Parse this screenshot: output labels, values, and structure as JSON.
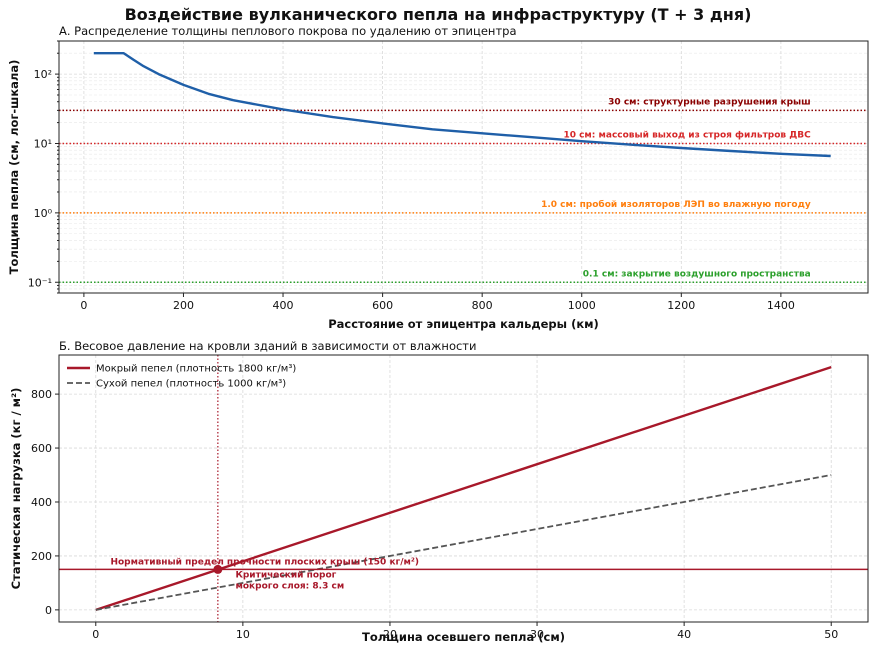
{
  "title": "Воздействие вулканического пепла на инфраструктуру (T + 3 дня)",
  "chart_data": [
    {
      "type": "line",
      "subtitle": "А. Распределение толщины пеплового покрова по удалению от эпицентра",
      "xlabel": "Расстояние от эпицентра кальдеры (км)",
      "ylabel": "Толщина пепла (см, лог-шкала)",
      "xlim": [
        -50,
        1575
      ],
      "ylim": [
        0.07,
        300
      ],
      "yscale": "log",
      "grid": true,
      "x_ticks": [
        0,
        200,
        400,
        600,
        800,
        1000,
        1200,
        1400
      ],
      "x_tick_labels": [
        "0",
        "200",
        "400",
        "600",
        "800",
        "1000",
        "1200",
        "1400"
      ],
      "y_ticks": [
        0.1,
        1,
        10,
        100
      ],
      "y_tick_labels": [
        "10⁻¹",
        "10⁰",
        "10¹",
        "10²"
      ],
      "series": [
        {
          "color": "#1f5fa8",
          "x": [
            20,
            50,
            80,
            100,
            120,
            150,
            200,
            250,
            300,
            400,
            500,
            600,
            700,
            800,
            900,
            1000,
            1100,
            1200,
            1300,
            1400,
            1500
          ],
          "y": [
            200,
            200,
            200,
            160,
            130,
            100,
            70,
            52,
            42,
            31,
            24,
            19.5,
            16,
            14,
            12.3,
            10.8,
            9.6,
            8.6,
            7.8,
            7.1,
            6.6
          ]
        }
      ],
      "thresholds": [
        {
          "value": 30,
          "color": "#8b0000",
          "label": "30 см: структурные разрушения крыш"
        },
        {
          "value": 10,
          "color": "#d62728",
          "label": "10 см: массовый выход из строя фильтров ДВС"
        },
        {
          "value": 1.0,
          "color": "#ff7f0e",
          "label": "1.0 см: пробой изоляторов ЛЭП во влажную погоду"
        },
        {
          "value": 0.1,
          "color": "#2ca02c",
          "label": "0.1 см: закрытие воздушного пространства"
        }
      ]
    },
    {
      "type": "line",
      "subtitle": "Б. Весовое давление на кровли зданий в зависимости от влажности",
      "xlabel": "Толщина осевшего пепла (см)",
      "ylabel": "Статическая нагрузка (кг / м²)",
      "xlim": [
        -2.5,
        52.5
      ],
      "ylim": [
        -45,
        945
      ],
      "grid": true,
      "legend_position": "top-left",
      "x_ticks": [
        0,
        10,
        20,
        30,
        40,
        50
      ],
      "x_tick_labels": [
        "0",
        "10",
        "20",
        "30",
        "40",
        "50"
      ],
      "y_ticks": [
        0,
        200,
        400,
        600,
        800
      ],
      "y_tick_labels": [
        "0",
        "200",
        "400",
        "600",
        "800"
      ],
      "series": [
        {
          "name": "Мокрый пепел (плотность 1800 кг/м³)",
          "color": "#a8182a",
          "style": "solid",
          "x": [
            0,
            50
          ],
          "y": [
            0,
            900
          ]
        },
        {
          "name": "Сухой пепел (плотность 1000 кг/м³)",
          "color": "#555555",
          "style": "dashed",
          "x": [
            0,
            50
          ],
          "y": [
            0,
            500
          ]
        }
      ],
      "threshold": {
        "value": 150,
        "color": "#a8182a",
        "label": "Нормативный предел прочности плоских крыш (150 кг/м²)"
      },
      "critical_point": {
        "x": 8.3,
        "y": 150,
        "label_line1": "Критический порог",
        "label_line2": "мокрого слоя: 8.3 см"
      }
    }
  ]
}
